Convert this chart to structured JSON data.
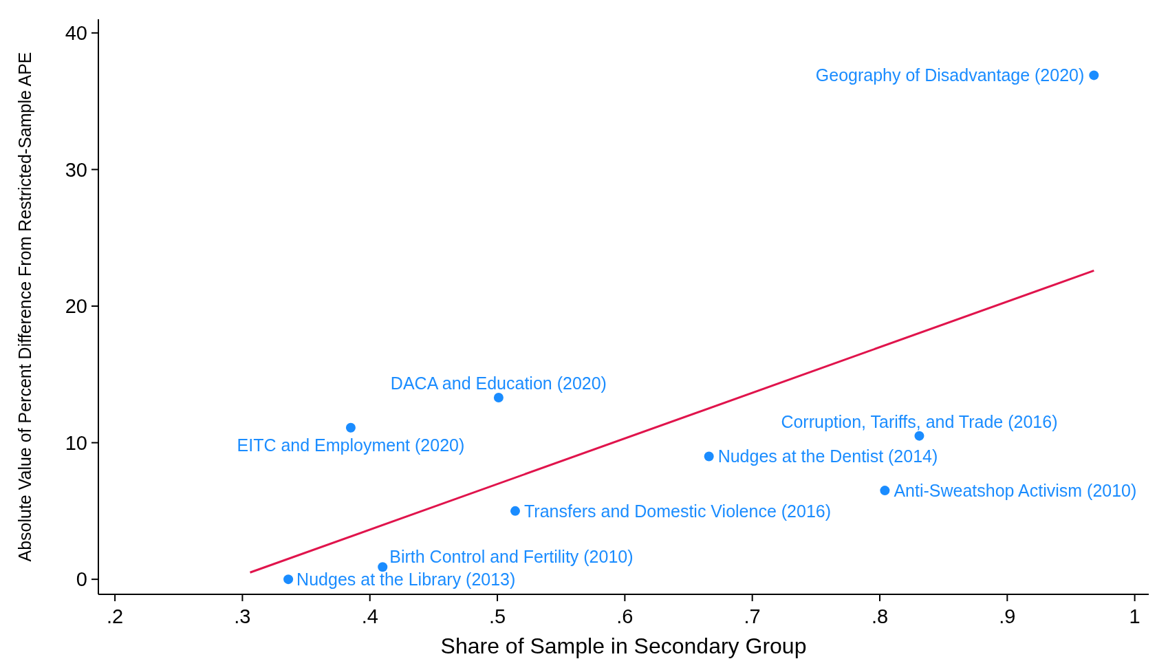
{
  "chart_data": {
    "type": "scatter",
    "xlabel": "Share of Sample in Secondary Group",
    "ylabel": "Absolute Value of Percent Difference From Restricted-Sample APE",
    "xlim": [
      0.187,
      1.011
    ],
    "ylim": [
      -1.1,
      41
    ],
    "xticks": [
      {
        "value": 0.2,
        "label": ".2"
      },
      {
        "value": 0.3,
        "label": ".3"
      },
      {
        "value": 0.4,
        "label": ".4"
      },
      {
        "value": 0.5,
        "label": ".5"
      },
      {
        "value": 0.6,
        "label": ".6"
      },
      {
        "value": 0.7,
        "label": ".7"
      },
      {
        "value": 0.8,
        "label": ".8"
      },
      {
        "value": 0.9,
        "label": ".9"
      },
      1
    ],
    "yticks": [
      0,
      10,
      20,
      30,
      40
    ],
    "grid": false,
    "series": [
      {
        "marker": "circle",
        "color": "#1a8cff",
        "x": [
          0.968,
          0.501,
          0.385,
          0.831,
          0.666,
          0.804,
          0.514,
          0.41,
          0.336
        ],
        "values": [
          36.9,
          13.3,
          11.1,
          10.5,
          9.0,
          6.5,
          5.0,
          0.9,
          0.0
        ]
      },
      {
        "type": "line",
        "marker": "none",
        "color": "#e0144c",
        "x": [
          0.306,
          0.968
        ],
        "values": [
          0.5,
          22.6
        ]
      }
    ],
    "annotations": [
      {
        "text": "Geography of Disadvantage (2020)",
        "x": 0.968,
        "y": 36.9
      },
      {
        "text": "DACA and Education (2020)",
        "x": 0.501,
        "y": 13.3
      },
      {
        "text": "EITC and Employment (2020)",
        "x": 0.385,
        "y": 11.1
      },
      {
        "text": "Corruption, Tariffs, and Trade (2016)",
        "x": 0.831,
        "y": 10.5
      },
      {
        "text": "Nudges at the Dentist (2014)",
        "x": 0.666,
        "y": 9.0
      },
      {
        "text": "Anti-Sweatshop Activism (2010)",
        "x": 0.804,
        "y": 6.5
      },
      {
        "text": "Transfers and Domestic Violence (2016)",
        "x": 0.514,
        "y": 5.0
      },
      {
        "text": "Birth Control and Fertility (2010)",
        "x": 0.41,
        "y": 0.9
      },
      {
        "text": "Nudges at the Library (2013)",
        "x": 0.336,
        "y": 0.0
      }
    ]
  }
}
